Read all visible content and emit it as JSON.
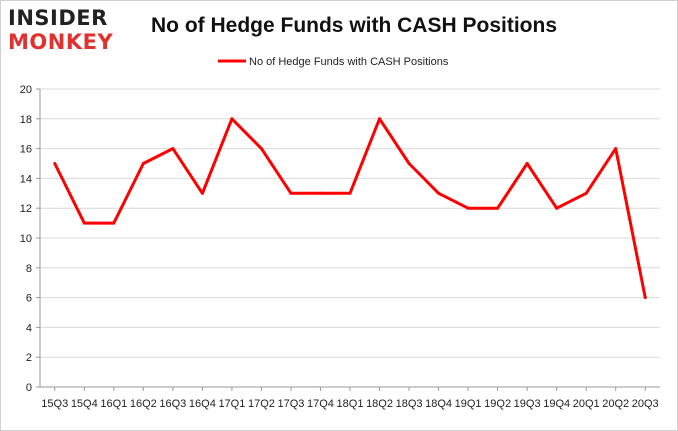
{
  "logo": {
    "line1": "INSIDER",
    "line2": "MONKEY"
  },
  "chart_data": {
    "type": "line",
    "title": "No of Hedge Funds with CASH Positions",
    "xlabel": "",
    "ylabel": "",
    "ylim": [
      0,
      20
    ],
    "yticks": [
      0,
      2,
      4,
      6,
      8,
      10,
      12,
      14,
      16,
      18,
      20
    ],
    "grid": true,
    "legend": "top-center",
    "categories": [
      "15Q3",
      "15Q4",
      "16Q1",
      "16Q2",
      "16Q3",
      "16Q4",
      "17Q1",
      "17Q2",
      "17Q3",
      "17Q4",
      "18Q1",
      "18Q2",
      "18Q3",
      "18Q4",
      "19Q1",
      "19Q2",
      "19Q3",
      "19Q4",
      "20Q1",
      "20Q2",
      "20Q3"
    ],
    "series": [
      {
        "name": "No of Hedge Funds with CASH Positions",
        "color": "#ff0000",
        "values": [
          15,
          11,
          11,
          15,
          16,
          13,
          18,
          16,
          13,
          13,
          13,
          18,
          15,
          13,
          12,
          12,
          15,
          12,
          13,
          16,
          6
        ]
      }
    ]
  }
}
